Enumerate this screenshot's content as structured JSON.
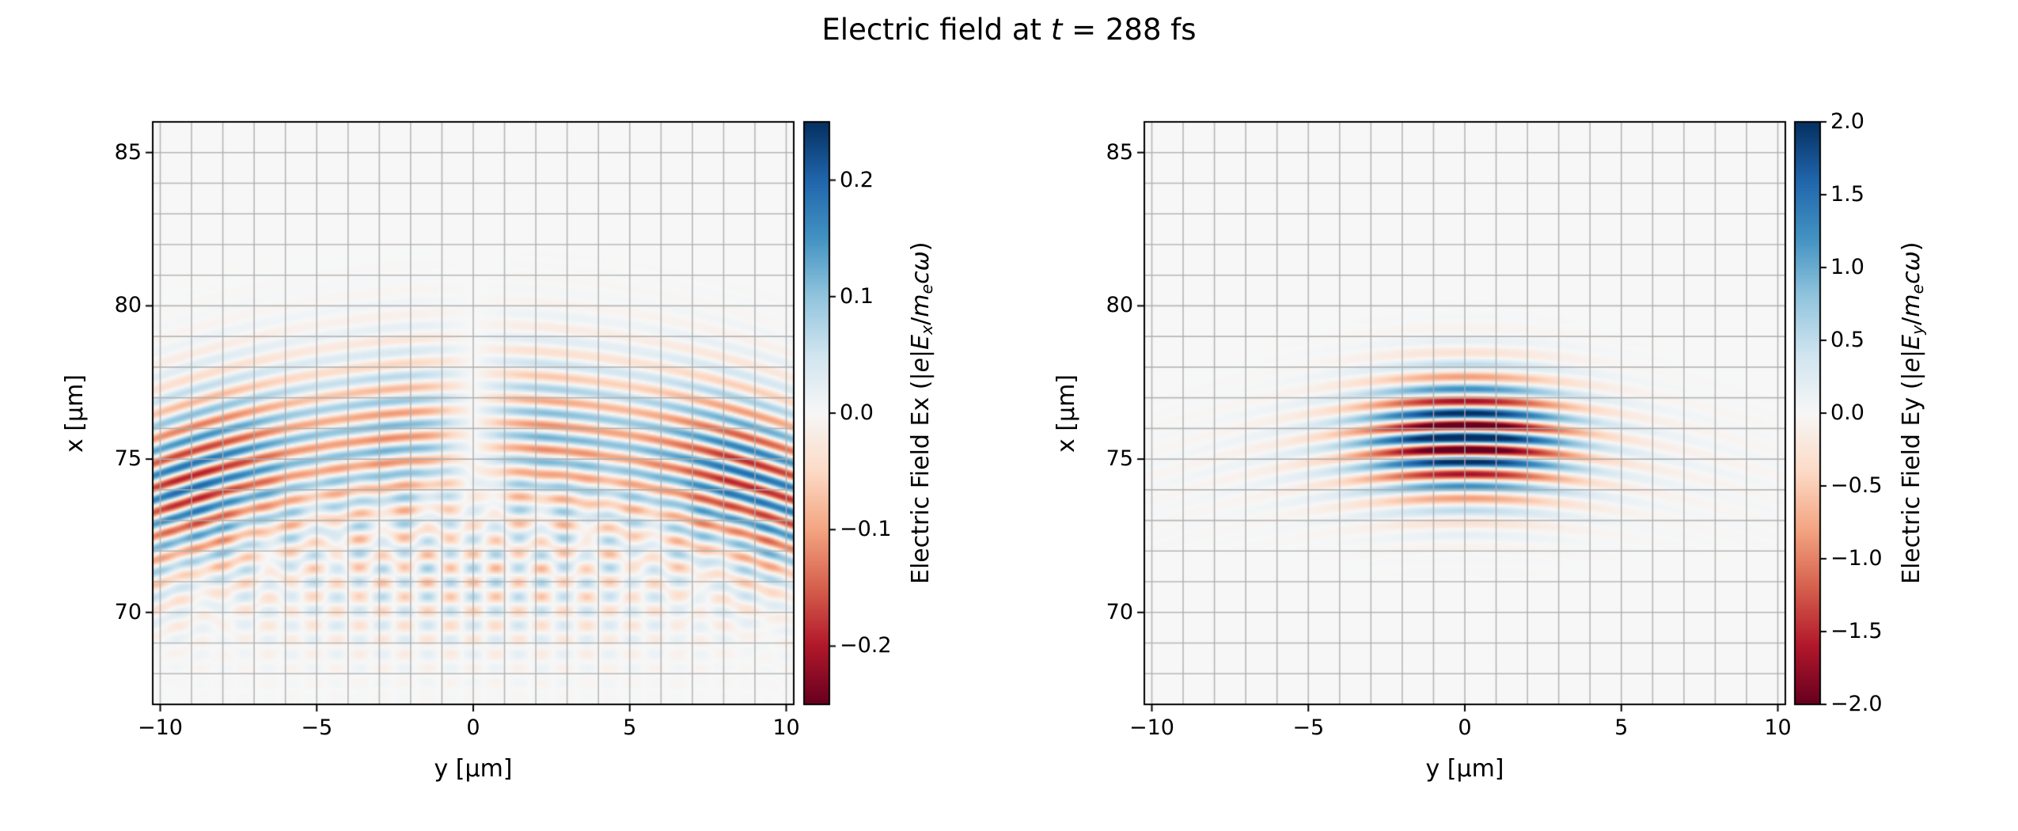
{
  "figure": {
    "background": "#ffffff",
    "time_fs": 288,
    "title_parts": [
      {
        "text": "Electric field at ",
        "italic": false
      },
      {
        "text": "t",
        "italic": true
      },
      {
        "text": " = 288 fs",
        "italic": false
      }
    ]
  },
  "chart_data": [
    {
      "type": "heatmap",
      "name": "ex",
      "xlabel": "y [μm]",
      "ylabel": "x [μm]",
      "xlim": [
        -10.24,
        10.24
      ],
      "ylim": [
        67.0,
        86.0
      ],
      "xticks": {
        "values": [
          -10,
          -5,
          0,
          5,
          10
        ],
        "labels": [
          "−10",
          "−5",
          "0",
          "5",
          "10"
        ]
      },
      "yticks": {
        "values": [
          85,
          80,
          75,
          70
        ],
        "labels": [
          "85",
          "80",
          "75",
          "70"
        ]
      },
      "grid": {
        "show": true,
        "spacing_um": 1,
        "color": "#ababab"
      },
      "colormap": "RdBu",
      "colorbar": {
        "vmin": -0.25,
        "vmax": 0.25,
        "ticks": {
          "values": [
            0.2,
            0.1,
            0.0,
            -0.1,
            -0.2
          ],
          "labels": [
            "0.2",
            "0.1",
            "0.0",
            "−0.1",
            "−0.2"
          ]
        },
        "label_parts": [
          {
            "text": "Electric Field Ex (|",
            "italic": false
          },
          {
            "text": "e",
            "italic": true
          },
          {
            "text": "|",
            "italic": false
          },
          {
            "text": "E",
            "italic": true
          },
          {
            "text": "x",
            "italic": true,
            "sub": true
          },
          {
            "text": "/",
            "italic": false
          },
          {
            "text": "m",
            "italic": true
          },
          {
            "text": "e",
            "italic": true,
            "sub": true
          },
          {
            "text": "c",
            "italic": true
          },
          {
            "text": "ω",
            "italic": true
          },
          {
            "text": ")",
            "italic": false
          }
        ]
      },
      "field_model": {
        "description": "Longitudinal laser field component: odd parity in y with node on axis, curved wavefronts bending toward lower x at |y| large, strongest lobes near y = ±9 μm at x ≈ 74 μm, faint crosshatch of scattered waves near x ≈ 71 μm",
        "amplitude": 0.25,
        "wavelength_um": 0.8,
        "center_x_um": 75.7,
        "pulse_sigma_um": 2.8,
        "waist_um": 4.5,
        "wavefront_curvature_um": 30
      }
    },
    {
      "type": "heatmap",
      "name": "ey",
      "xlabel": "y [μm]",
      "ylabel": "x [μm]",
      "xlim": [
        -10.24,
        10.24
      ],
      "ylim": [
        67.0,
        86.0
      ],
      "xticks": {
        "values": [
          -10,
          -5,
          0,
          5,
          10
        ],
        "labels": [
          "−10",
          "−5",
          "0",
          "5",
          "10"
        ]
      },
      "yticks": {
        "values": [
          85,
          80,
          75,
          70
        ],
        "labels": [
          "85",
          "80",
          "75",
          "70"
        ]
      },
      "grid": {
        "show": true,
        "spacing_um": 1,
        "color": "#ababab"
      },
      "colormap": "RdBu",
      "colorbar": {
        "vmin": -2.0,
        "vmax": 2.0,
        "ticks": {
          "values": [
            2.0,
            1.5,
            1.0,
            0.5,
            0.0,
            -0.5,
            -1.0,
            -1.5,
            -2.0
          ],
          "labels": [
            "2.0",
            "1.5",
            "1.0",
            "0.5",
            "0.0",
            "−0.5",
            "−1.0",
            "−1.5",
            "−2.0"
          ]
        },
        "label_parts": [
          {
            "text": "Electric Field Ey (|",
            "italic": false
          },
          {
            "text": "e",
            "italic": true
          },
          {
            "text": "|",
            "italic": false
          },
          {
            "text": "E",
            "italic": true
          },
          {
            "text": "y",
            "italic": true,
            "sub": true
          },
          {
            "text": "/",
            "italic": false
          },
          {
            "text": "m",
            "italic": true
          },
          {
            "text": "e",
            "italic": true,
            "sub": true
          },
          {
            "text": "c",
            "italic": true
          },
          {
            "text": "ω",
            "italic": true
          },
          {
            "text": ")",
            "italic": false
          }
        ]
      },
      "field_model": {
        "description": "Main transverse laser field: strong saturated alternating stripes centered at y = 0, x ≈ 75.7 μm, Gaussian waist ≈ 3 μm, faint curved side tails out to |y| = 10 μm",
        "amplitude": 2.0,
        "wavelength_um": 0.8,
        "center_x_um": 75.7,
        "pulse_sigma_um": 1.9,
        "waist_um": 3.1,
        "wavefront_curvature_um": 30
      }
    }
  ]
}
